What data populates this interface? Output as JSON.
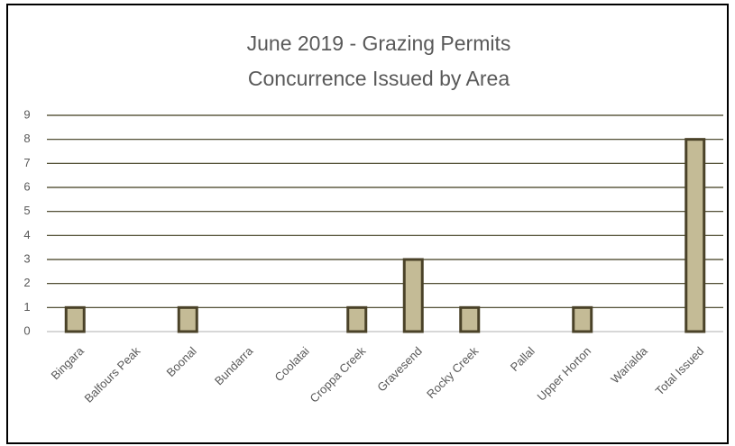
{
  "chart_data": {
    "type": "bar",
    "title": [
      "June 2019 - Grazing Permits",
      "Concurrence Issued by Area"
    ],
    "categories": [
      "Bingara",
      "Balfours Peak",
      "Boonal",
      "Bundarra",
      "Coolatai",
      "Croppa Creek",
      "Gravesend",
      "Rocky Creek",
      "Pallal",
      "Upper Horton",
      "Warialda",
      "Total Issued"
    ],
    "values": [
      1,
      0,
      1,
      0,
      0,
      1,
      3,
      1,
      0,
      1,
      0,
      8
    ],
    "color": "#c4bb96",
    "ylim": [
      0,
      9
    ],
    "yticks": [
      0,
      1,
      2,
      3,
      4,
      5,
      6,
      7,
      8,
      9
    ],
    "grid": true
  }
}
